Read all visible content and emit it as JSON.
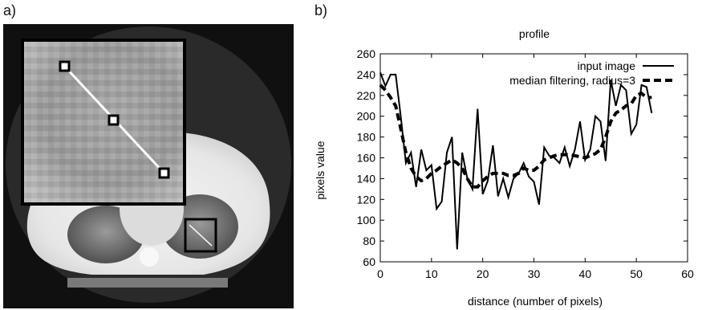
{
  "panels": {
    "a_label": "a)",
    "b_label": "b)"
  },
  "chart_data": {
    "type": "line",
    "title": "profile",
    "xlabel": "distance (number of pixels)",
    "ylabel": "pixels value",
    "xlim": [
      0,
      60
    ],
    "ylim": [
      60,
      260
    ],
    "xticks": [
      "0",
      "10",
      "20",
      "30",
      "40",
      "50",
      "60"
    ],
    "yticks": [
      "60",
      "80",
      "100",
      "120",
      "140",
      "160",
      "180",
      "200",
      "220",
      "240",
      "260"
    ],
    "grid": false,
    "legend_position": "top-right",
    "series": [
      {
        "name": "input image",
        "style": "solid",
        "x": [
          0,
          1,
          2,
          3,
          4,
          5,
          6,
          7,
          8,
          9,
          10,
          11,
          12,
          13,
          14,
          15,
          16,
          17,
          18,
          19,
          20,
          21,
          22,
          23,
          24,
          25,
          26,
          27,
          28,
          29,
          30,
          31,
          32,
          33,
          34,
          35,
          36,
          37,
          38,
          39,
          40,
          41,
          42,
          43,
          44,
          45,
          46,
          47,
          48,
          49,
          50,
          51,
          52,
          53
        ],
        "y": [
          242,
          229,
          240,
          240,
          200,
          155,
          165,
          132,
          168,
          148,
          153,
          111,
          118,
          165,
          180,
          72,
          165,
          140,
          130,
          207,
          125,
          138,
          172,
          123,
          140,
          122,
          140,
          145,
          155,
          142,
          137,
          115,
          170,
          162,
          160,
          155,
          170,
          152,
          168,
          195,
          158,
          168,
          200,
          195,
          157,
          235,
          210,
          230,
          225,
          183,
          192,
          230,
          228,
          203
        ]
      },
      {
        "name": "median filtering, radius=3",
        "style": "dashed",
        "x": [
          0,
          1,
          2,
          3,
          4,
          5,
          6,
          7,
          8,
          9,
          10,
          11,
          12,
          13,
          14,
          15,
          16,
          17,
          18,
          19,
          20,
          21,
          22,
          23,
          24,
          25,
          26,
          27,
          28,
          29,
          30,
          31,
          32,
          33,
          34,
          35,
          36,
          37,
          38,
          39,
          40,
          41,
          42,
          43,
          44,
          45,
          46,
          47,
          48,
          49,
          50,
          51,
          52,
          53
        ],
        "y": [
          230,
          225,
          218,
          210,
          188,
          165,
          150,
          142,
          138,
          140,
          145,
          148,
          152,
          155,
          158,
          155,
          150,
          140,
          132,
          132,
          138,
          142,
          145,
          145,
          145,
          143,
          143,
          145,
          150,
          148,
          148,
          152,
          158,
          160,
          162,
          163,
          163,
          163,
          162,
          161,
          160,
          162,
          164,
          168,
          180,
          195,
          203,
          206,
          210,
          212,
          220,
          222,
          218,
          218
        ]
      }
    ]
  }
}
